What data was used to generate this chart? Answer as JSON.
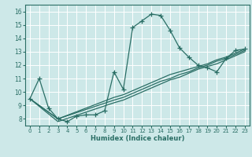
{
  "xlabel": "Humidex (Indice chaleur)",
  "bg_color": "#cde8e8",
  "grid_color": "#ffffff",
  "line_color": "#2a6e65",
  "xlim": [
    -0.5,
    23.5
  ],
  "ylim": [
    7.5,
    16.5
  ],
  "xticks": [
    0,
    1,
    2,
    3,
    4,
    5,
    6,
    7,
    8,
    9,
    10,
    11,
    12,
    13,
    14,
    15,
    16,
    17,
    18,
    19,
    20,
    21,
    22,
    23
  ],
  "yticks": [
    8,
    9,
    10,
    11,
    12,
    13,
    14,
    15,
    16
  ],
  "main_series": {
    "x": [
      0,
      1,
      2,
      3,
      4,
      5,
      6,
      7,
      8,
      9,
      10,
      11,
      12,
      13,
      14,
      15,
      16,
      17,
      18,
      19,
      20,
      21,
      22,
      23
    ],
    "y": [
      9.5,
      11.0,
      8.8,
      8.0,
      7.8,
      8.2,
      8.3,
      8.3,
      8.6,
      11.5,
      10.2,
      14.8,
      15.3,
      15.8,
      15.7,
      14.6,
      13.3,
      12.6,
      12.0,
      11.8,
      11.5,
      12.5,
      13.1,
      13.2
    ]
  },
  "smooth_series": [
    {
      "x": [
        0,
        3,
        9,
        10,
        11,
        12,
        13,
        14,
        15,
        16,
        17,
        18,
        19,
        20,
        21,
        22,
        23
      ],
      "y": [
        9.5,
        8.0,
        9.6,
        9.8,
        10.1,
        10.4,
        10.7,
        11.0,
        11.3,
        11.5,
        11.7,
        11.9,
        12.1,
        12.4,
        12.6,
        12.9,
        13.2
      ]
    },
    {
      "x": [
        0,
        3,
        9,
        10,
        11,
        12,
        13,
        14,
        15,
        16,
        17,
        18,
        19,
        20,
        21,
        22,
        23
      ],
      "y": [
        9.5,
        8.0,
        9.4,
        9.6,
        9.9,
        10.2,
        10.5,
        10.8,
        11.0,
        11.3,
        11.5,
        11.8,
        12.0,
        12.3,
        12.5,
        12.8,
        13.1
      ]
    },
    {
      "x": [
        0,
        3,
        9,
        10,
        11,
        12,
        13,
        14,
        15,
        16,
        17,
        18,
        19,
        20,
        21,
        22,
        23
      ],
      "y": [
        9.5,
        7.8,
        9.2,
        9.4,
        9.7,
        10.0,
        10.3,
        10.6,
        10.9,
        11.1,
        11.4,
        11.7,
        11.9,
        12.1,
        12.4,
        12.7,
        13.0
      ]
    }
  ]
}
